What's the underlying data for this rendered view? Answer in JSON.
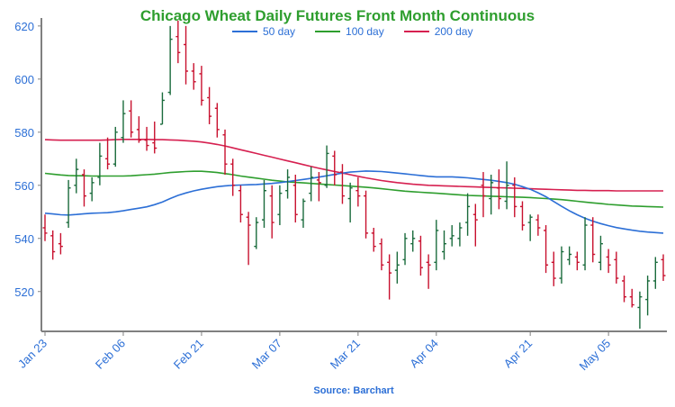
{
  "chart_data": {
    "type": "candlestick",
    "title": "Chicago Wheat Daily Futures Front Month Continuous",
    "source": "Source: Barchart",
    "xlabel": "",
    "ylabel": "",
    "ylim": [
      505,
      623
    ],
    "yticks": [
      520,
      540,
      560,
      580,
      600,
      620
    ],
    "xticks": [
      "Jan 23",
      "Feb 06",
      "Feb 21",
      "Mar 07",
      "Mar 21",
      "Apr 04",
      "Apr 21",
      "May 05"
    ],
    "grid": false,
    "legend_position": "top-center",
    "colors": {
      "up": "#1a6b3c",
      "down": "#c8102e",
      "ma50": "#2c6fd6",
      "ma100": "#2e9e2e",
      "ma200": "#d62050",
      "axis": "#808080",
      "text": "#2c6fd6",
      "title": "#2e9e2e"
    },
    "legend": [
      {
        "name": "50 day",
        "color": "#2c6fd6"
      },
      {
        "name": "100 day",
        "color": "#2e9e2e"
      },
      {
        "name": "200 day",
        "color": "#d62050"
      }
    ],
    "candles": [
      {
        "date": "Jan 23",
        "open": 544,
        "high": 549,
        "low": 539,
        "close": 542
      },
      {
        "date": "Jan 24",
        "open": 541,
        "high": 543,
        "low": 532,
        "close": 535
      },
      {
        "date": "Jan 25",
        "open": 538,
        "high": 542,
        "low": 534,
        "close": 537
      },
      {
        "date": "Jan 26",
        "open": 546,
        "high": 562,
        "low": 544,
        "close": 559
      },
      {
        "date": "Jan 27",
        "open": 560,
        "high": 570,
        "low": 557,
        "close": 566
      },
      {
        "date": "Jan 30",
        "open": 564,
        "high": 566,
        "low": 552,
        "close": 556
      },
      {
        "date": "Jan 31",
        "open": 557,
        "high": 563,
        "low": 554,
        "close": 561
      },
      {
        "date": "Feb 01",
        "open": 563,
        "high": 576,
        "low": 560,
        "close": 571
      },
      {
        "date": "Feb 02",
        "open": 570,
        "high": 578,
        "low": 566,
        "close": 568
      },
      {
        "date": "Feb 03",
        "open": 568,
        "high": 582,
        "low": 567,
        "close": 580
      },
      {
        "date": "Feb 06",
        "open": 578,
        "high": 592,
        "low": 576,
        "close": 587
      },
      {
        "date": "Feb 07",
        "open": 588,
        "high": 592,
        "low": 578,
        "close": 580
      },
      {
        "date": "Feb 08",
        "open": 581,
        "high": 586,
        "low": 576,
        "close": 577
      },
      {
        "date": "Feb 09",
        "open": 577,
        "high": 582,
        "low": 573,
        "close": 575
      },
      {
        "date": "Feb 10",
        "open": 576,
        "high": 584,
        "low": 572,
        "close": 574
      },
      {
        "date": "Feb 13",
        "open": 583,
        "high": 595,
        "low": 583,
        "close": 592
      },
      {
        "date": "Feb 14",
        "open": 595,
        "high": 620,
        "low": 594,
        "close": 615
      },
      {
        "date": "Feb 15",
        "open": 616,
        "high": 622,
        "low": 606,
        "close": 610
      },
      {
        "date": "Feb 16",
        "open": 613,
        "high": 620,
        "low": 598,
        "close": 603
      },
      {
        "date": "Feb 17",
        "open": 603,
        "high": 606,
        "low": 596,
        "close": 599
      },
      {
        "date": "Feb 21",
        "open": 602,
        "high": 605,
        "low": 590,
        "close": 592
      },
      {
        "date": "Feb 22",
        "open": 593,
        "high": 597,
        "low": 583,
        "close": 586
      },
      {
        "date": "Feb 23",
        "open": 589,
        "high": 591,
        "low": 578,
        "close": 581
      },
      {
        "date": "Feb 24",
        "open": 579,
        "high": 581,
        "low": 564,
        "close": 568
      },
      {
        "date": "Feb 27",
        "open": 568,
        "high": 570,
        "low": 556,
        "close": 560
      },
      {
        "date": "Feb 28",
        "open": 558,
        "high": 560,
        "low": 546,
        "close": 549
      },
      {
        "date": "Mar 01",
        "open": 548,
        "high": 550,
        "low": 530,
        "close": 545
      },
      {
        "date": "Mar 02",
        "open": 537,
        "high": 548,
        "low": 536,
        "close": 546
      },
      {
        "date": "Mar 03",
        "open": 547,
        "high": 562,
        "low": 544,
        "close": 558
      },
      {
        "date": "Mar 06",
        "open": 556,
        "high": 560,
        "low": 540,
        "close": 546
      },
      {
        "date": "Mar 07",
        "open": 549,
        "high": 560,
        "low": 545,
        "close": 557
      },
      {
        "date": "Mar 08",
        "open": 558,
        "high": 566,
        "low": 555,
        "close": 563
      },
      {
        "date": "Mar 09",
        "open": 560,
        "high": 564,
        "low": 546,
        "close": 549
      },
      {
        "date": "Mar 10",
        "open": 547,
        "high": 555,
        "low": 544,
        "close": 554
      },
      {
        "date": "Mar 13",
        "open": 557,
        "high": 567,
        "low": 554,
        "close": 563
      },
      {
        "date": "Mar 14",
        "open": 562,
        "high": 565,
        "low": 554,
        "close": 561
      },
      {
        "date": "Mar 15",
        "open": 560,
        "high": 575,
        "low": 559,
        "close": 572
      },
      {
        "date": "Mar 16",
        "open": 571,
        "high": 573,
        "low": 560,
        "close": 564
      },
      {
        "date": "Mar 17",
        "open": 565,
        "high": 568,
        "low": 553,
        "close": 556
      },
      {
        "date": "Mar 20",
        "open": 555,
        "high": 561,
        "low": 546,
        "close": 559
      },
      {
        "date": "Mar 21",
        "open": 558,
        "high": 563,
        "low": 552,
        "close": 556
      },
      {
        "date": "Mar 22",
        "open": 556,
        "high": 558,
        "low": 540,
        "close": 542
      },
      {
        "date": "Mar 23",
        "open": 542,
        "high": 544,
        "low": 535,
        "close": 537
      },
      {
        "date": "Mar 24",
        "open": 538,
        "high": 540,
        "low": 528,
        "close": 530
      },
      {
        "date": "Mar 27",
        "open": 531,
        "high": 534,
        "low": 517,
        "close": 527
      },
      {
        "date": "Mar 28",
        "open": 528,
        "high": 535,
        "low": 523,
        "close": 530
      },
      {
        "date": "Mar 29",
        "open": 532,
        "high": 542,
        "low": 530,
        "close": 540
      },
      {
        "date": "Mar 30",
        "open": 538,
        "high": 543,
        "low": 535,
        "close": 540
      },
      {
        "date": "Mar 31",
        "open": 539,
        "high": 541,
        "low": 526,
        "close": 529
      },
      {
        "date": "Apr 03",
        "open": 531,
        "high": 534,
        "low": 521,
        "close": 530
      },
      {
        "date": "Apr 04",
        "open": 531,
        "high": 547,
        "low": 528,
        "close": 543
      },
      {
        "date": "Apr 05",
        "open": 535,
        "high": 543,
        "low": 532,
        "close": 538
      },
      {
        "date": "Apr 06",
        "open": 540,
        "high": 545,
        "low": 537,
        "close": 541
      },
      {
        "date": "Apr 10",
        "open": 540,
        "high": 546,
        "low": 537,
        "close": 544
      },
      {
        "date": "Apr 11",
        "open": 546,
        "high": 557,
        "low": 541,
        "close": 552
      },
      {
        "date": "Apr 12",
        "open": 549,
        "high": 553,
        "low": 537,
        "close": 547
      },
      {
        "date": "Apr 13",
        "open": 560,
        "high": 565,
        "low": 548,
        "close": 556
      },
      {
        "date": "Apr 14",
        "open": 555,
        "high": 564,
        "low": 549,
        "close": 561
      },
      {
        "date": "Apr 17",
        "open": 559,
        "high": 566,
        "low": 551,
        "close": 555
      },
      {
        "date": "Apr 18",
        "open": 554,
        "high": 569,
        "low": 551,
        "close": 560
      },
      {
        "date": "Apr 19",
        "open": 560,
        "high": 563,
        "low": 548,
        "close": 552
      },
      {
        "date": "Apr 20",
        "open": 552,
        "high": 554,
        "low": 543,
        "close": 545
      },
      {
        "date": "Apr 21",
        "open": 546,
        "high": 549,
        "low": 539,
        "close": 548
      },
      {
        "date": "Apr 24",
        "open": 547,
        "high": 549,
        "low": 541,
        "close": 544
      },
      {
        "date": "Apr 25",
        "open": 543,
        "high": 545,
        "low": 527,
        "close": 530
      },
      {
        "date": "Apr 26",
        "open": 531,
        "high": 535,
        "low": 522,
        "close": 525
      },
      {
        "date": "Apr 27",
        "open": 525,
        "high": 537,
        "low": 523,
        "close": 535
      },
      {
        "date": "Apr 28",
        "open": 532,
        "high": 537,
        "low": 530,
        "close": 534
      },
      {
        "date": "May 01",
        "open": 533,
        "high": 535,
        "low": 528,
        "close": 531
      },
      {
        "date": "May 02",
        "open": 530,
        "high": 548,
        "low": 528,
        "close": 545
      },
      {
        "date": "May 03",
        "open": 545,
        "high": 548,
        "low": 531,
        "close": 534
      },
      {
        "date": "May 04",
        "open": 531,
        "high": 541,
        "low": 528,
        "close": 538
      },
      {
        "date": "May 05",
        "open": 533,
        "high": 536,
        "low": 527,
        "close": 530
      },
      {
        "date": "May 08",
        "open": 532,
        "high": 535,
        "low": 523,
        "close": 525
      },
      {
        "date": "May 09",
        "open": 524,
        "high": 526,
        "low": 516,
        "close": 518
      },
      {
        "date": "May 10",
        "open": 518,
        "high": 521,
        "low": 514,
        "close": 515
      },
      {
        "date": "May 11",
        "open": 514,
        "high": 520,
        "low": 506,
        "close": 518
      },
      {
        "date": "May 12",
        "open": 517,
        "high": 526,
        "low": 511,
        "close": 524
      },
      {
        "date": "May 15",
        "open": 524,
        "high": 533,
        "low": 521,
        "close": 531
      },
      {
        "date": "May 16",
        "open": 532,
        "high": 534,
        "low": 524,
        "close": 526
      }
    ],
    "ma50": [
      549.5,
      549.2,
      548.9,
      548.8,
      549.0,
      549.3,
      549.5,
      549.6,
      549.7,
      550.0,
      550.4,
      550.9,
      551.4,
      551.9,
      552.7,
      553.7,
      555.0,
      556.2,
      557.1,
      557.9,
      558.5,
      559.0,
      559.5,
      559.8,
      560.0,
      560.1,
      560.2,
      560.3,
      560.5,
      560.7,
      561.0,
      561.4,
      561.8,
      562.2,
      562.6,
      563.1,
      563.6,
      564.1,
      564.6,
      565.0,
      565.2,
      565.4,
      565.3,
      565.2,
      564.9,
      564.6,
      564.3,
      564.0,
      563.7,
      563.4,
      563.2,
      563.2,
      563.2,
      563.0,
      562.8,
      562.5,
      562.2,
      561.9,
      561.5,
      561.0,
      560.4,
      559.5,
      558.5,
      557.2,
      555.7,
      553.9,
      552.1,
      550.4,
      548.9,
      547.6,
      546.5,
      545.6,
      544.8,
      544.1,
      543.6,
      543.1,
      542.7,
      542.4,
      542.2,
      542.0
    ],
    "ma100": [
      564.5,
      564.2,
      563.9,
      563.7,
      563.6,
      563.6,
      563.5,
      563.5,
      563.5,
      563.5,
      563.5,
      563.6,
      563.8,
      564.0,
      564.2,
      564.5,
      564.8,
      565.0,
      565.2,
      565.3,
      565.3,
      565.1,
      564.8,
      564.4,
      564.0,
      563.5,
      563.1,
      562.7,
      562.3,
      561.9,
      561.6,
      561.3,
      561.1,
      560.9,
      560.7,
      560.5,
      560.3,
      560.1,
      559.9,
      559.7,
      559.5,
      559.3,
      559.0,
      558.7,
      558.4,
      558.1,
      557.8,
      557.6,
      557.4,
      557.2,
      557.0,
      556.8,
      556.6,
      556.4,
      556.2,
      556.1,
      556.0,
      555.9,
      555.8,
      555.7,
      555.6,
      555.5,
      555.4,
      555.2,
      555.0,
      554.8,
      554.6,
      554.3,
      554.0,
      553.7,
      553.4,
      553.1,
      552.8,
      552.6,
      552.4,
      552.2,
      552.1,
      552.0,
      551.9,
      551.8
    ],
    "ma200": [
      577.2,
      577.1,
      577.0,
      577.0,
      577.0,
      577.0,
      577.0,
      577.0,
      577.1,
      577.2,
      577.3,
      577.3,
      577.3,
      577.3,
      577.2,
      577.2,
      577.1,
      577.0,
      576.8,
      576.6,
      576.3,
      575.9,
      575.4,
      574.8,
      574.1,
      573.4,
      572.7,
      572.0,
      571.3,
      570.6,
      569.9,
      569.2,
      568.5,
      567.8,
      567.1,
      566.4,
      565.8,
      565.2,
      564.6,
      564.0,
      563.4,
      562.8,
      562.3,
      561.8,
      561.4,
      561.0,
      560.7,
      560.4,
      560.2,
      560.0,
      559.9,
      559.8,
      559.7,
      559.6,
      559.5,
      559.4,
      559.3,
      559.2,
      559.1,
      559.0,
      558.9,
      558.8,
      558.7,
      558.6,
      558.5,
      558.4,
      558.3,
      558.2,
      558.1,
      558.1,
      558.0,
      558.0,
      558.0,
      557.9,
      557.9,
      557.9,
      557.9,
      557.9,
      557.9,
      557.9
    ]
  }
}
